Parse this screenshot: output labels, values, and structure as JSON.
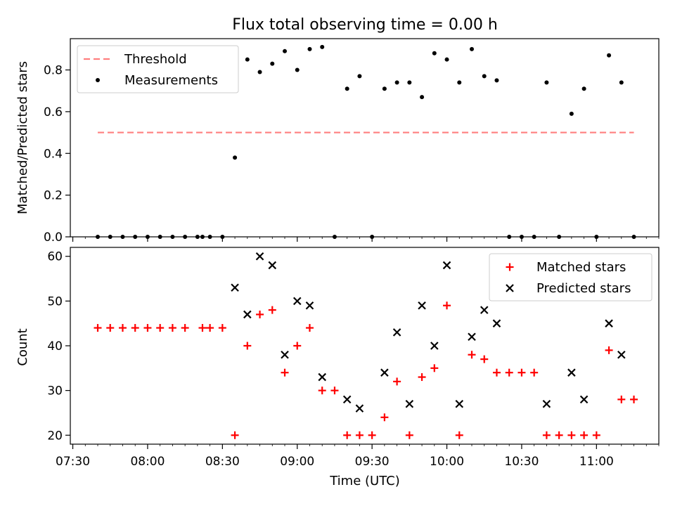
{
  "title": "Flux total observing time = 0.00 h",
  "xlabel": "Time (UTC)",
  "x_ticks": [
    "07:30",
    "08:00",
    "08:30",
    "09:00",
    "09:30",
    "10:00",
    "10:30",
    "11:00"
  ],
  "colors": {
    "threshold": "#ff7f7f",
    "measurements": "#000000",
    "matched": "#ff0000",
    "predicted": "#000000"
  },
  "chart_data": [
    {
      "type": "scatter",
      "ylabel": "Matched/Predicted stars",
      "xlim": [
        "07:29",
        "11:25"
      ],
      "ylim": [
        0,
        0.95
      ],
      "y_ticks": [
        "0.0",
        "0.2",
        "0.4",
        "0.6",
        "0.8"
      ],
      "legend_position": "top-left",
      "series": [
        {
          "name": "Threshold",
          "style": "dashed-line",
          "x": [
            "07:40",
            "11:15"
          ],
          "y": [
            0.5,
            0.5
          ]
        },
        {
          "name": "Measurements",
          "style": "dot",
          "x": [
            "07:40",
            "07:45",
            "07:50",
            "07:55",
            "08:00",
            "08:05",
            "08:10",
            "08:15",
            "08:20",
            "08:22",
            "08:25",
            "08:30",
            "08:35",
            "08:40",
            "08:45",
            "08:50",
            "08:55",
            "09:00",
            "09:05",
            "09:10",
            "09:15",
            "09:20",
            "09:25",
            "09:30",
            "09:35",
            "09:40",
            "09:45",
            "09:50",
            "09:55",
            "10:00",
            "10:05",
            "10:10",
            "10:15",
            "10:20",
            "10:25",
            "10:30",
            "10:35",
            "10:40",
            "10:45",
            "10:50",
            "10:55",
            "11:00",
            "11:05",
            "11:10",
            "11:15"
          ],
          "y": [
            0,
            0,
            0,
            0,
            0,
            0,
            0,
            0,
            0,
            0,
            0,
            0,
            0.38,
            0.85,
            0.79,
            0.83,
            0.89,
            0.8,
            0.9,
            0.91,
            0,
            0.71,
            0.77,
            0,
            0.71,
            0.74,
            0.74,
            0.67,
            0.88,
            0.85,
            0.74,
            0.9,
            0.77,
            0.75,
            0,
            0,
            0,
            0.74,
            0,
            0.59,
            0.71,
            0,
            0.87,
            0.74,
            0
          ]
        }
      ]
    },
    {
      "type": "scatter",
      "ylabel": "Count",
      "xlim": [
        "07:29",
        "11:25"
      ],
      "ylim": [
        18,
        62
      ],
      "y_ticks": [
        "20",
        "30",
        "40",
        "50",
        "60"
      ],
      "legend_position": "top-right",
      "series": [
        {
          "name": "Matched stars",
          "marker": "+",
          "x": [
            "07:40",
            "07:45",
            "07:50",
            "07:55",
            "08:00",
            "08:05",
            "08:10",
            "08:15",
            "08:22",
            "08:25",
            "08:30",
            "08:35",
            "08:40",
            "08:45",
            "08:50",
            "08:55",
            "09:00",
            "09:05",
            "09:10",
            "09:15",
            "09:20",
            "09:25",
            "09:30",
            "09:35",
            "09:40",
            "09:45",
            "09:50",
            "09:55",
            "10:00",
            "10:05",
            "10:10",
            "10:15",
            "10:20",
            "10:25",
            "10:30",
            "10:35",
            "10:40",
            "10:45",
            "10:50",
            "10:55",
            "11:00",
            "11:05",
            "11:10",
            "11:15"
          ],
          "y": [
            44,
            44,
            44,
            44,
            44,
            44,
            44,
            44,
            44,
            44,
            44,
            20,
            40,
            47,
            48,
            34,
            40,
            44,
            30,
            30,
            20,
            20,
            20,
            24,
            32,
            20,
            33,
            35,
            49,
            20,
            38,
            37,
            34,
            34,
            34,
            34,
            20,
            20,
            20,
            20,
            20,
            39,
            28,
            28
          ]
        },
        {
          "name": "Predicted stars",
          "marker": "x",
          "x": [
            "08:35",
            "08:40",
            "08:45",
            "08:50",
            "08:55",
            "09:00",
            "09:05",
            "09:10",
            "09:20",
            "09:25",
            "09:35",
            "09:40",
            "09:45",
            "09:50",
            "09:55",
            "10:00",
            "10:05",
            "10:10",
            "10:15",
            "10:20",
            "10:40",
            "10:50",
            "10:55",
            "11:05",
            "11:10"
          ],
          "y": [
            53,
            47,
            60,
            58,
            38,
            50,
            49,
            33,
            28,
            26,
            34,
            43,
            27,
            49,
            40,
            58,
            27,
            42,
            48,
            45,
            27,
            34,
            28,
            45,
            38
          ]
        }
      ]
    }
  ]
}
